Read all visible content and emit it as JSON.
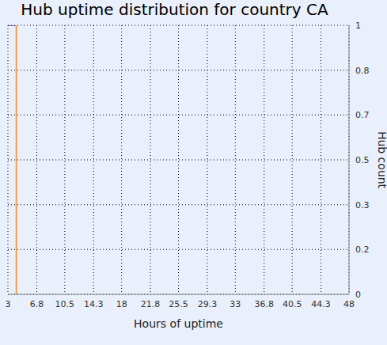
{
  "chart_data": {
    "type": "line",
    "title": "Hub uptime distribution for country CA",
    "x_label": "Hours of uptime",
    "y_label": "Hub count",
    "series": [
      {
        "color": "#3c3cc8",
        "x": [
          3,
          4.1
        ],
        "values": [
          1,
          1
        ]
      },
      {
        "color": "#ff8c1a",
        "x": [
          4.1,
          4.1
        ],
        "values": [
          0,
          1
        ]
      }
    ],
    "xlim": [
      3,
      48
    ],
    "xticks": [
      3,
      6.8,
      10.5,
      14.3,
      18,
      21.8,
      25.5,
      29.3,
      33,
      36.8,
      40.5,
      44.3,
      48
    ],
    "ylim": [
      0,
      1
    ],
    "yticks": [
      0,
      {
        "value": 0.167,
        "label": "0.2"
      },
      {
        "value": 0.333,
        "label": "0.3"
      },
      0.5,
      {
        "value": 0.667,
        "label": "0.7"
      },
      {
        "value": 0.833,
        "label": "0.8"
      },
      1
    ],
    "grid": true
  }
}
